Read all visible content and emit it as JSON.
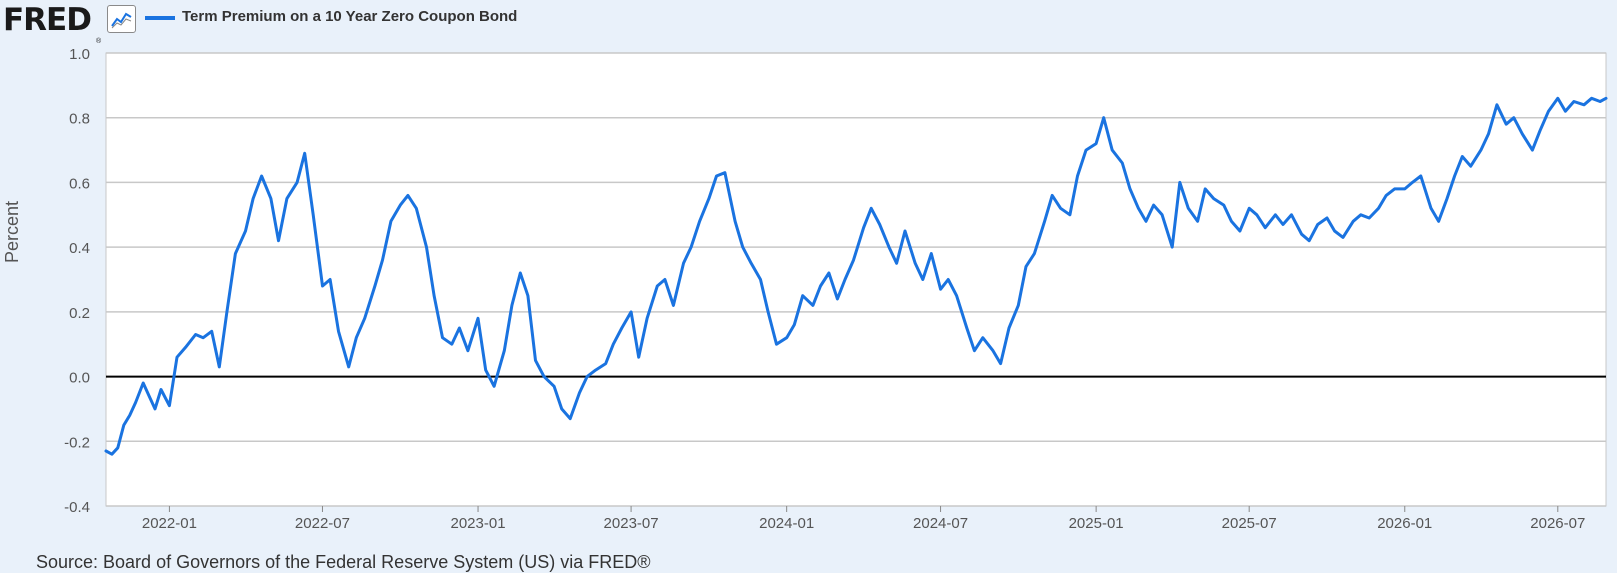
{
  "header": {
    "logo": "FRED",
    "logo_mark": "®",
    "chart_icon": "line-chart-icon",
    "series_label": "Term Premium on a 10 Year Zero Coupon Bond"
  },
  "colors": {
    "series": "#1a73e0",
    "background": "#e9f1fa",
    "grid": "#c8c8c8",
    "zero_line": "#000000"
  },
  "footer": {
    "source": "Source: Board of Governors of the Federal Reserve System (US) via FRED®"
  },
  "chart_data": {
    "type": "line",
    "title": "",
    "xlabel": "",
    "ylabel": "Percent",
    "ylim": [
      -0.4,
      1.0
    ],
    "yticks": [
      -0.4,
      -0.2,
      0.0,
      0.2,
      0.4,
      0.6,
      0.8,
      1.0
    ],
    "ytick_labels": [
      "-0.4",
      "-0.2",
      "0.0",
      "0.2",
      "0.4",
      "0.6",
      "0.8",
      "1.0"
    ],
    "xlim": [
      "2021-10-18",
      "2026-08-27"
    ],
    "xticks": [
      "2022-01-01",
      "2022-07-01",
      "2023-01-01",
      "2023-07-01",
      "2024-01-01",
      "2024-07-01",
      "2025-01-01",
      "2025-07-01",
      "2026-01-01",
      "2026-07-01"
    ],
    "xtick_labels": [
      "2022-01",
      "2022-07",
      "2023-01",
      "2023-07",
      "2024-01",
      "2024-07",
      "2025-01",
      "2025-07",
      "2026-01",
      "2026-07"
    ],
    "grid": true,
    "legend": "top-left",
    "series": [
      {
        "name": "Term Premium on a 10 Year Zero Coupon Bond",
        "points": [
          [
            "2021-10-18",
            -0.23
          ],
          [
            "2021-10-25",
            -0.24
          ],
          [
            "2021-11-01",
            -0.22
          ],
          [
            "2021-11-08",
            -0.15
          ],
          [
            "2021-11-15",
            -0.12
          ],
          [
            "2021-11-22",
            -0.08
          ],
          [
            "2021-12-01",
            -0.02
          ],
          [
            "2021-12-08",
            -0.06
          ],
          [
            "2021-12-15",
            -0.1
          ],
          [
            "2021-12-22",
            -0.04
          ],
          [
            "2022-01-01",
            -0.09
          ],
          [
            "2022-01-10",
            0.06
          ],
          [
            "2022-01-20",
            0.09
          ],
          [
            "2022-02-01",
            0.13
          ],
          [
            "2022-02-10",
            0.12
          ],
          [
            "2022-02-20",
            0.14
          ],
          [
            "2022-03-01",
            0.03
          ],
          [
            "2022-03-10",
            0.2
          ],
          [
            "2022-03-20",
            0.38
          ],
          [
            "2022-04-01",
            0.45
          ],
          [
            "2022-04-10",
            0.55
          ],
          [
            "2022-04-20",
            0.62
          ],
          [
            "2022-05-01",
            0.55
          ],
          [
            "2022-05-10",
            0.42
          ],
          [
            "2022-05-20",
            0.55
          ],
          [
            "2022-06-01",
            0.6
          ],
          [
            "2022-06-10",
            0.69
          ],
          [
            "2022-06-20",
            0.5
          ],
          [
            "2022-07-01",
            0.28
          ],
          [
            "2022-07-10",
            0.3
          ],
          [
            "2022-07-20",
            0.14
          ],
          [
            "2022-08-01",
            0.03
          ],
          [
            "2022-08-10",
            0.12
          ],
          [
            "2022-08-20",
            0.18
          ],
          [
            "2022-09-01",
            0.28
          ],
          [
            "2022-09-10",
            0.36
          ],
          [
            "2022-09-20",
            0.48
          ],
          [
            "2022-10-01",
            0.53
          ],
          [
            "2022-10-10",
            0.56
          ],
          [
            "2022-10-20",
            0.52
          ],
          [
            "2022-11-01",
            0.4
          ],
          [
            "2022-11-10",
            0.25
          ],
          [
            "2022-11-20",
            0.12
          ],
          [
            "2022-12-01",
            0.1
          ],
          [
            "2022-12-10",
            0.15
          ],
          [
            "2022-12-20",
            0.08
          ],
          [
            "2023-01-01",
            0.18
          ],
          [
            "2023-01-10",
            0.02
          ],
          [
            "2023-01-20",
            -0.03
          ],
          [
            "2023-02-01",
            0.08
          ],
          [
            "2023-02-10",
            0.22
          ],
          [
            "2023-02-20",
            0.32
          ],
          [
            "2023-03-01",
            0.25
          ],
          [
            "2023-03-10",
            0.05
          ],
          [
            "2023-03-20",
            0.0
          ],
          [
            "2023-04-01",
            -0.03
          ],
          [
            "2023-04-10",
            -0.1
          ],
          [
            "2023-04-20",
            -0.13
          ],
          [
            "2023-05-01",
            -0.05
          ],
          [
            "2023-05-10",
            0.0
          ],
          [
            "2023-05-20",
            0.02
          ],
          [
            "2023-06-01",
            0.04
          ],
          [
            "2023-06-10",
            0.1
          ],
          [
            "2023-06-20",
            0.15
          ],
          [
            "2023-07-01",
            0.2
          ],
          [
            "2023-07-10",
            0.06
          ],
          [
            "2023-07-20",
            0.18
          ],
          [
            "2023-08-01",
            0.28
          ],
          [
            "2023-08-10",
            0.3
          ],
          [
            "2023-08-20",
            0.22
          ],
          [
            "2023-09-01",
            0.35
          ],
          [
            "2023-09-10",
            0.4
          ],
          [
            "2023-09-20",
            0.48
          ],
          [
            "2023-10-01",
            0.55
          ],
          [
            "2023-10-10",
            0.62
          ],
          [
            "2023-10-20",
            0.63
          ],
          [
            "2023-11-01",
            0.48
          ],
          [
            "2023-11-10",
            0.4
          ],
          [
            "2023-11-20",
            0.35
          ],
          [
            "2023-12-01",
            0.3
          ],
          [
            "2023-12-10",
            0.2
          ],
          [
            "2023-12-20",
            0.1
          ],
          [
            "2024-01-01",
            0.12
          ],
          [
            "2024-01-10",
            0.16
          ],
          [
            "2024-01-20",
            0.25
          ],
          [
            "2024-02-01",
            0.22
          ],
          [
            "2024-02-10",
            0.28
          ],
          [
            "2024-02-20",
            0.32
          ],
          [
            "2024-03-01",
            0.24
          ],
          [
            "2024-03-10",
            0.3
          ],
          [
            "2024-03-20",
            0.36
          ],
          [
            "2024-04-01",
            0.46
          ],
          [
            "2024-04-10",
            0.52
          ],
          [
            "2024-04-20",
            0.47
          ],
          [
            "2024-05-01",
            0.4
          ],
          [
            "2024-05-10",
            0.35
          ],
          [
            "2024-05-20",
            0.45
          ],
          [
            "2024-06-01",
            0.35
          ],
          [
            "2024-06-10",
            0.3
          ],
          [
            "2024-06-20",
            0.38
          ],
          [
            "2024-07-01",
            0.27
          ],
          [
            "2024-07-10",
            0.3
          ],
          [
            "2024-07-20",
            0.25
          ],
          [
            "2024-08-01",
            0.15
          ],
          [
            "2024-08-10",
            0.08
          ],
          [
            "2024-08-20",
            0.12
          ],
          [
            "2024-09-01",
            0.08
          ],
          [
            "2024-09-10",
            0.04
          ],
          [
            "2024-09-20",
            0.15
          ],
          [
            "2024-10-01",
            0.22
          ],
          [
            "2024-10-10",
            0.34
          ],
          [
            "2024-10-20",
            0.38
          ],
          [
            "2024-11-01",
            0.48
          ],
          [
            "2024-11-10",
            0.56
          ],
          [
            "2024-11-20",
            0.52
          ],
          [
            "2024-12-01",
            0.5
          ],
          [
            "2024-12-10",
            0.62
          ],
          [
            "2024-12-20",
            0.7
          ],
          [
            "2025-01-01",
            0.72
          ],
          [
            "2025-01-10",
            0.8
          ],
          [
            "2025-01-20",
            0.7
          ],
          [
            "2025-02-01",
            0.66
          ],
          [
            "2025-02-10",
            0.58
          ],
          [
            "2025-02-20",
            0.52
          ],
          [
            "2025-03-01",
            0.48
          ],
          [
            "2025-03-10",
            0.53
          ],
          [
            "2025-03-20",
            0.5
          ],
          [
            "2025-04-01",
            0.4
          ],
          [
            "2025-04-10",
            0.6
          ],
          [
            "2025-04-20",
            0.52
          ],
          [
            "2025-05-01",
            0.48
          ],
          [
            "2025-05-10",
            0.58
          ],
          [
            "2025-05-20",
            0.55
          ],
          [
            "2025-06-01",
            0.53
          ],
          [
            "2025-06-10",
            0.48
          ],
          [
            "2025-06-20",
            0.45
          ],
          [
            "2025-07-01",
            0.52
          ],
          [
            "2025-07-10",
            0.5
          ],
          [
            "2025-07-20",
            0.46
          ],
          [
            "2025-08-01",
            0.5
          ],
          [
            "2025-08-10",
            0.47
          ],
          [
            "2025-08-20",
            0.5
          ],
          [
            "2025-09-01",
            0.44
          ],
          [
            "2025-09-10",
            0.42
          ],
          [
            "2025-09-20",
            0.47
          ],
          [
            "2025-10-01",
            0.49
          ],
          [
            "2025-10-10",
            0.45
          ],
          [
            "2025-10-20",
            0.43
          ],
          [
            "2025-11-01",
            0.48
          ],
          [
            "2025-11-10",
            0.5
          ],
          [
            "2025-11-20",
            0.49
          ],
          [
            "2025-12-01",
            0.52
          ],
          [
            "2025-12-10",
            0.56
          ],
          [
            "2025-12-20",
            0.58
          ],
          [
            "2026-01-01",
            0.58
          ],
          [
            "2026-01-10",
            0.6
          ],
          [
            "2026-01-20",
            0.62
          ],
          [
            "2026-02-01",
            0.52
          ],
          [
            "2026-02-10",
            0.48
          ],
          [
            "2026-02-20",
            0.55
          ],
          [
            "2026-03-01",
            0.62
          ],
          [
            "2026-03-10",
            0.68
          ],
          [
            "2026-03-20",
            0.65
          ],
          [
            "2026-04-01",
            0.7
          ],
          [
            "2026-04-10",
            0.75
          ],
          [
            "2026-04-20",
            0.84
          ],
          [
            "2026-05-01",
            0.78
          ],
          [
            "2026-05-10",
            0.8
          ],
          [
            "2026-05-20",
            0.75
          ],
          [
            "2026-06-01",
            0.7
          ],
          [
            "2026-06-10",
            0.76
          ],
          [
            "2026-06-20",
            0.82
          ],
          [
            "2026-07-01",
            0.86
          ],
          [
            "2026-07-10",
            0.82
          ],
          [
            "2026-07-20",
            0.85
          ],
          [
            "2026-08-01",
            0.84
          ],
          [
            "2026-08-10",
            0.86
          ],
          [
            "2026-08-20",
            0.85
          ],
          [
            "2026-08-27",
            0.86
          ]
        ]
      }
    ]
  }
}
